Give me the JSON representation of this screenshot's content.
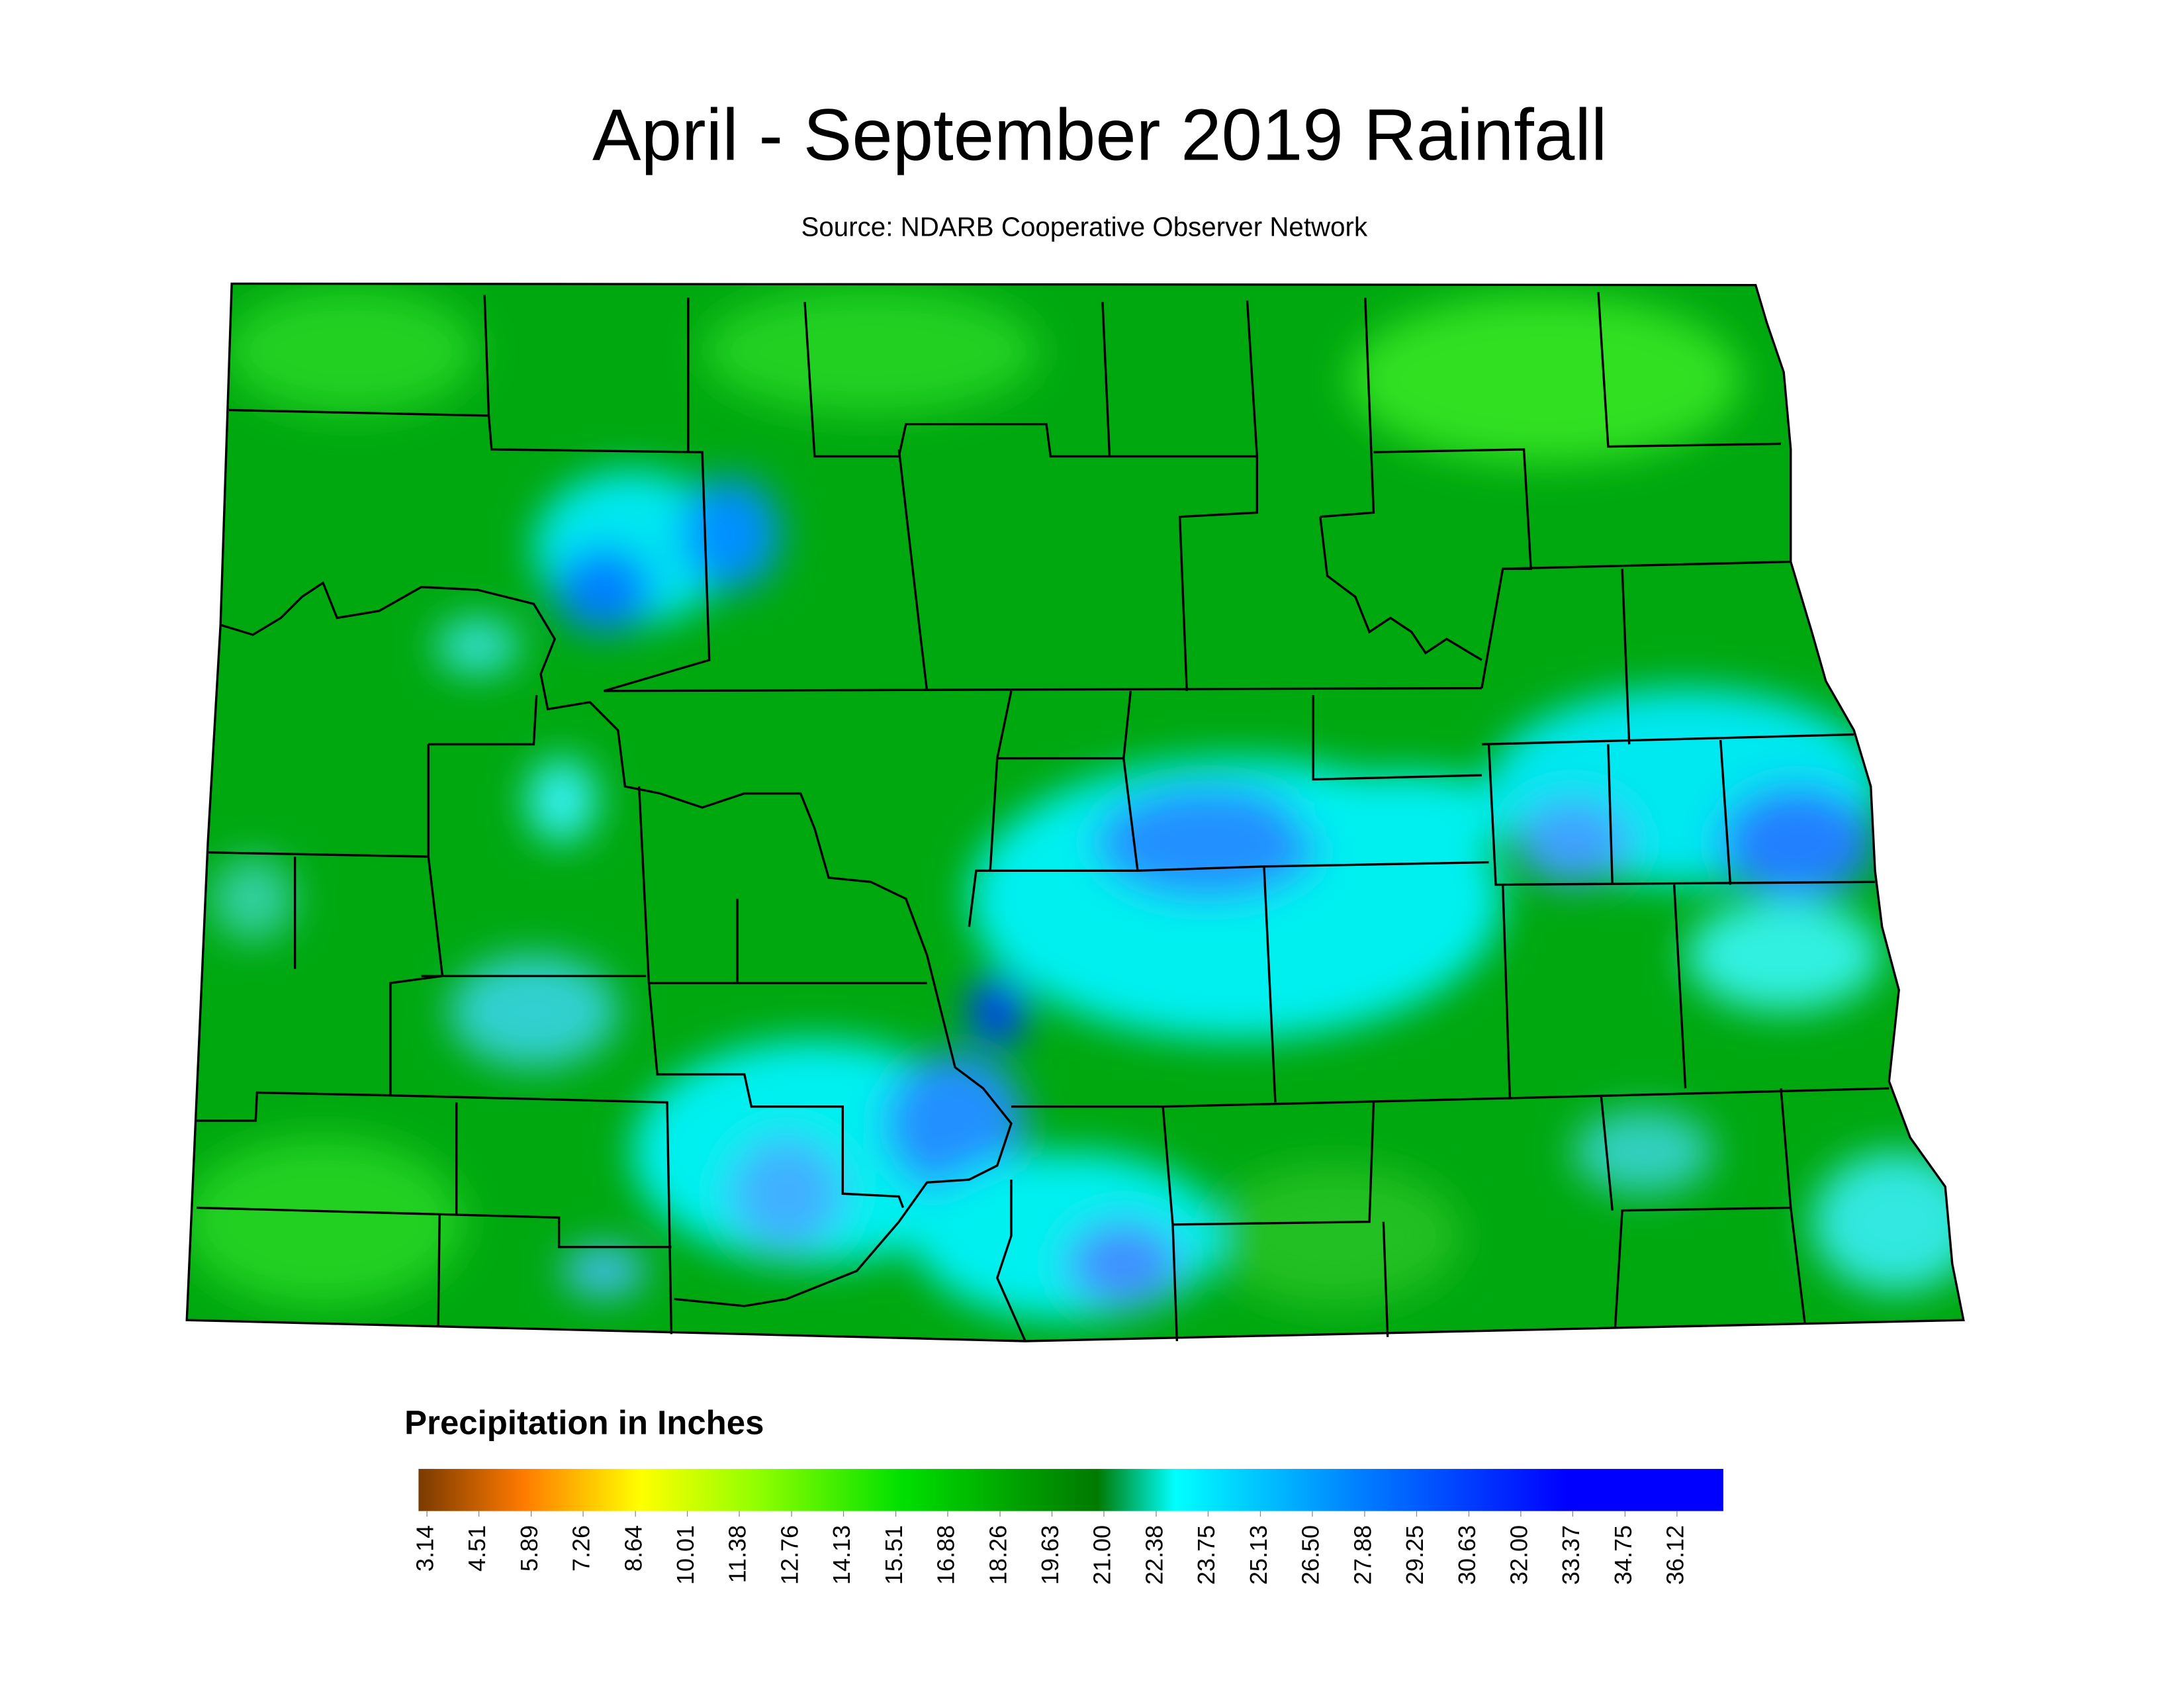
{
  "header": {
    "title": "April - September 2019 Rainfall",
    "source": "Source: NDARB Cooperative Observer Network"
  },
  "legend": {
    "title": "Precipitation in Inches",
    "ticks": [
      3.14,
      4.51,
      5.89,
      7.26,
      8.64,
      10.01,
      11.38,
      12.76,
      14.13,
      15.51,
      16.88,
      18.26,
      19.63,
      {
        "value": 21,
        "label": "21.00"
      },
      22.38,
      23.75,
      25.13,
      {
        "value": 26.5,
        "label": "26.50"
      },
      27.88,
      29.25,
      30.63,
      {
        "value": 32,
        "label": "32.00"
      },
      33.37,
      34.75,
      36.12
    ]
  }
}
